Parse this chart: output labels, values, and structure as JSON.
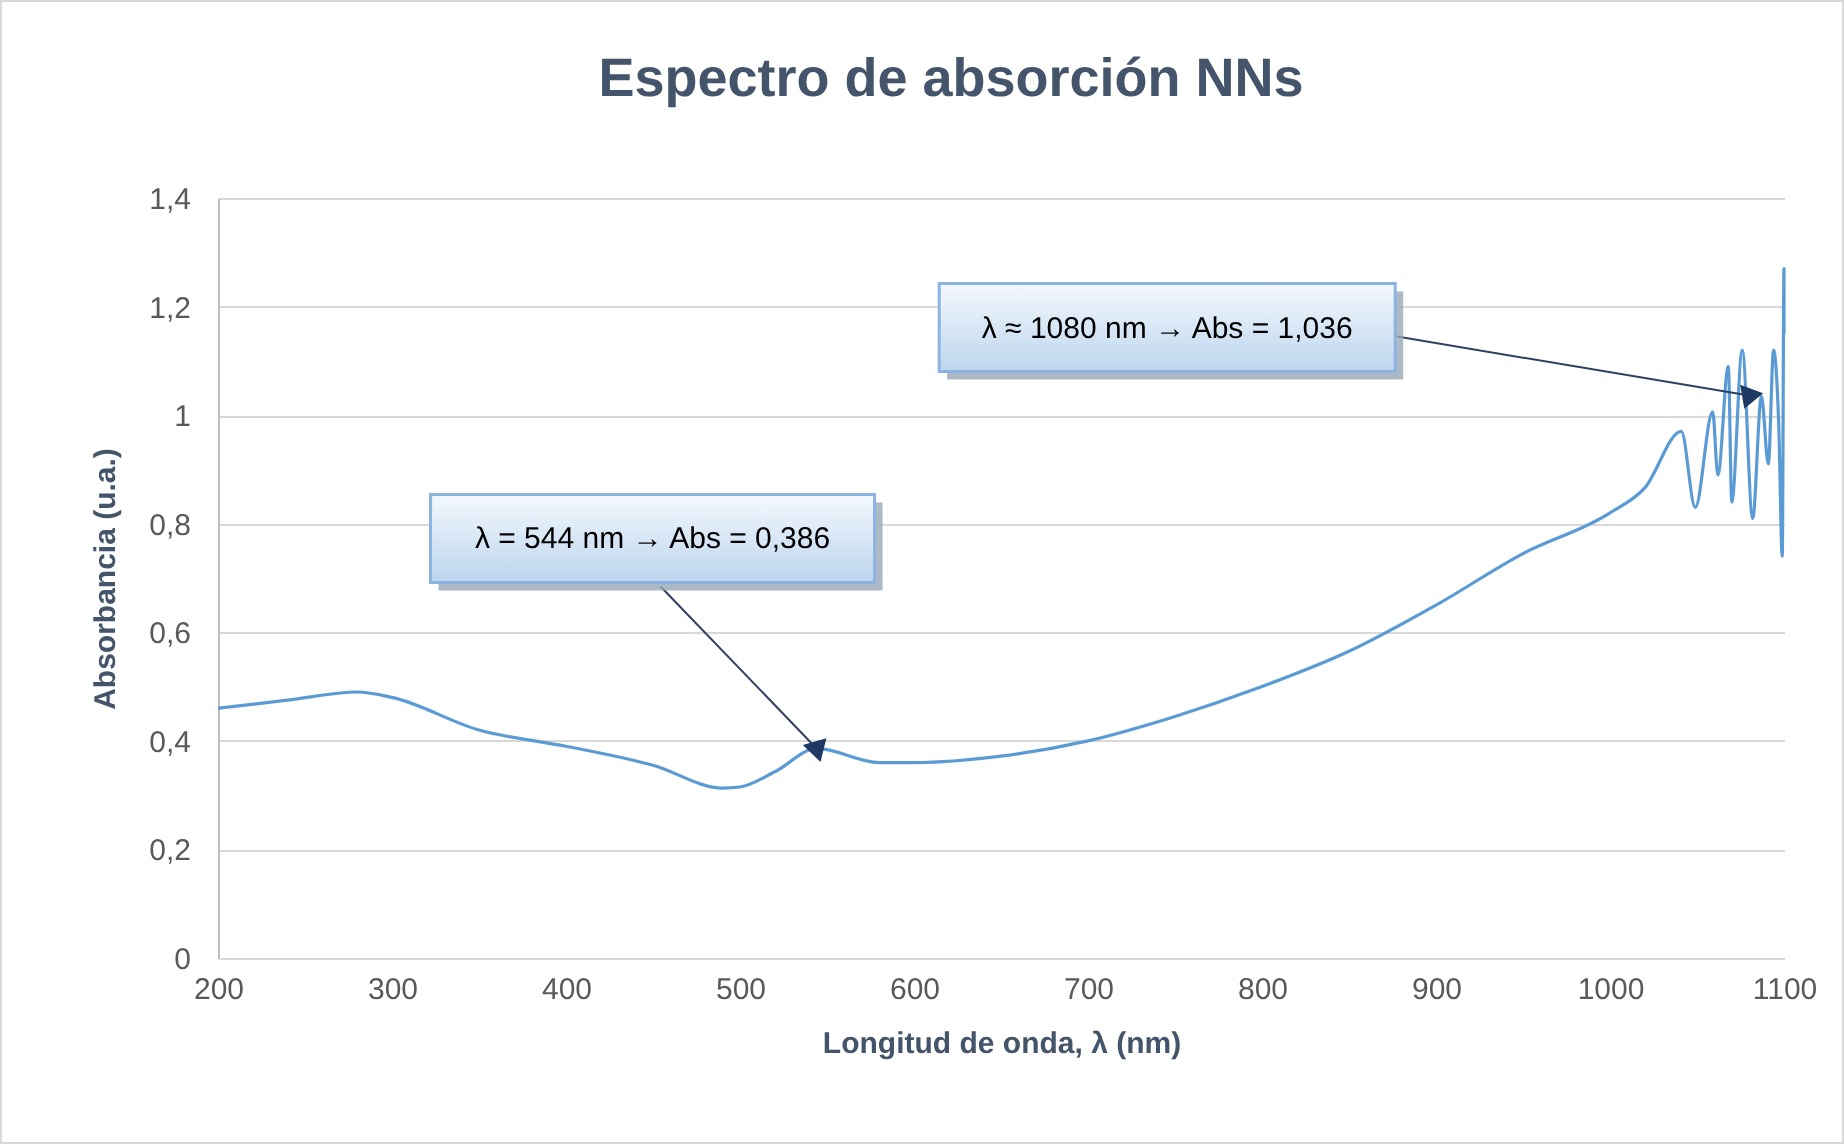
{
  "chart_data": {
    "type": "line",
    "title": "Espectro de absorción NNs",
    "xlabel": "Longitud de onda, λ (nm)",
    "ylabel": "Absorbancia (u.a.)",
    "x": [
      200,
      240,
      280,
      300,
      350,
      400,
      450,
      490,
      500,
      520,
      544,
      580,
      600,
      650,
      700,
      750,
      800,
      850,
      900,
      950,
      1000,
      1020,
      1041,
      1049,
      1059,
      1062,
      1068,
      1070,
      1076,
      1082,
      1087,
      1091,
      1094,
      1097,
      1099,
      1100,
      1100
    ],
    "series": [
      {
        "color": "#5b9bd5",
        "values": [
          0.46,
          0.475,
          0.49,
          0.48,
          0.42,
          0.39,
          0.355,
          0.313,
          0.315,
          0.343,
          0.386,
          0.36,
          0.36,
          0.372,
          0.4,
          0.445,
          0.5,
          0.565,
          0.65,
          0.745,
          0.82,
          0.866,
          0.97,
          0.83,
          1.006,
          0.89,
          1.09,
          0.84,
          1.12,
          0.81,
          1.035,
          0.91,
          1.12,
          0.98,
          0.74,
          1.27,
          1.15
        ]
      }
    ],
    "xlim": [
      200,
      1100
    ],
    "xticks": [
      200,
      300,
      400,
      500,
      600,
      700,
      800,
      900,
      1000,
      1100
    ],
    "ylim": [
      0,
      1.4
    ],
    "yticks": [
      0,
      {
        "value": 0.2,
        "label": "0,2"
      },
      {
        "value": 0.4,
        "label": "0,4"
      },
      {
        "value": 0.6,
        "label": "0,6"
      },
      {
        "value": 0.8,
        "label": "0,8"
      },
      1,
      {
        "value": 1.2,
        "label": "1,2"
      },
      {
        "value": 1.4,
        "label": "1,4"
      }
    ],
    "grid": "y",
    "legend": false,
    "marker": "none",
    "line_style": "solid",
    "annotations": [
      {
        "text": "λ = 544 nm → Abs = 0,386",
        "x": 544,
        "y": 0.386
      },
      {
        "text": "λ ≈ 1080 nm → Abs = 1,036",
        "x": 1080,
        "y": 1.036
      }
    ]
  }
}
